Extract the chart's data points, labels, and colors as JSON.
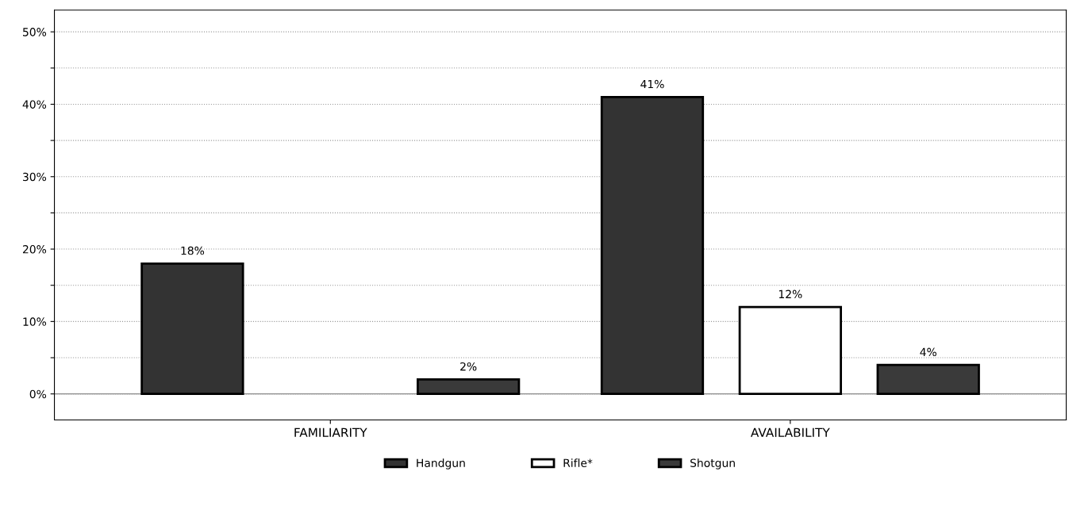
{
  "chart_data": {
    "type": "bar",
    "categories": [
      "FAMILIARITY",
      "AVAILABILITY"
    ],
    "series": [
      {
        "name": "Handgun",
        "color": "#333333",
        "values": [
          18,
          41
        ],
        "value_labels": [
          "18%",
          "41%"
        ]
      },
      {
        "name": "Rifle*",
        "color": "#ffffff",
        "values": [
          null,
          12
        ],
        "value_labels": [
          null,
          "12%"
        ]
      },
      {
        "name": "Shotgun",
        "color": "#3a3a3a",
        "values": [
          2,
          4
        ],
        "value_labels": [
          "2%",
          "4%"
        ]
      }
    ],
    "ylim": [
      -3.6,
      53
    ],
    "yticks": [
      {
        "value": 0,
        "label": "0%"
      },
      {
        "value": 5,
        "label": null
      },
      {
        "value": 10,
        "label": "10%"
      },
      {
        "value": 15,
        "label": null
      },
      {
        "value": 20,
        "label": "20%"
      },
      {
        "value": 25,
        "label": null
      },
      {
        "value": 30,
        "label": "30%"
      },
      {
        "value": 35,
        "label": null
      },
      {
        "value": 40,
        "label": "40%"
      },
      {
        "value": 45,
        "label": null
      },
      {
        "value": 50,
        "label": "50%"
      }
    ],
    "grid": "y",
    "legend": "bottom"
  }
}
